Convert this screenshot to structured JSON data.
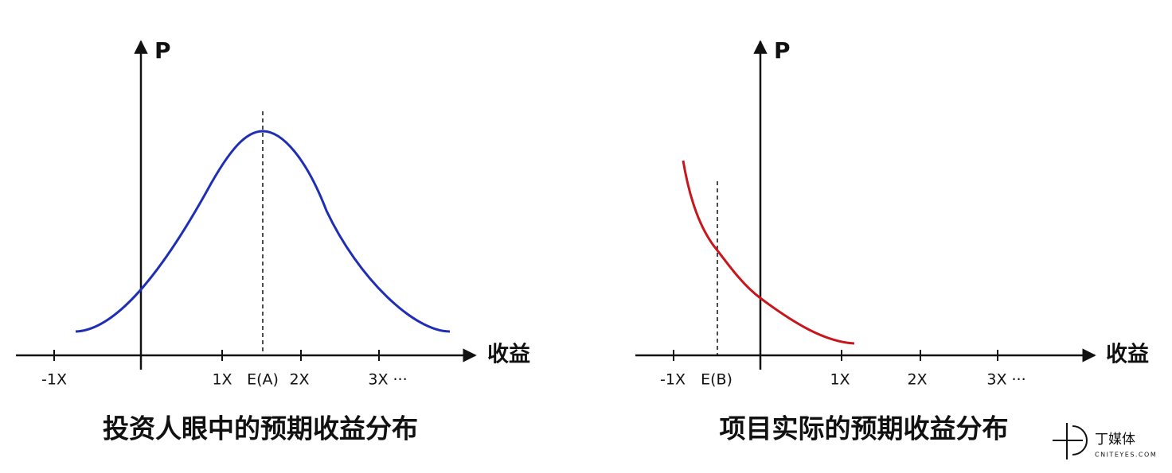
{
  "left": {
    "y_axis_label": "P",
    "x_axis_label": "收益",
    "tick_labels": [
      "-1X",
      "1X",
      "E(A)",
      "2X",
      "3X ···"
    ],
    "caption": "投资人眼中的预期收益分布"
  },
  "right": {
    "y_axis_label": "P",
    "x_axis_label": "收益",
    "tick_labels": [
      "-1X",
      "E(B)",
      "1X",
      "2X",
      "3X ···"
    ],
    "caption": "项目实际的预期收益分布"
  },
  "logo": {
    "name": "丁媒体",
    "url": "CNITEYES.COM"
  }
}
